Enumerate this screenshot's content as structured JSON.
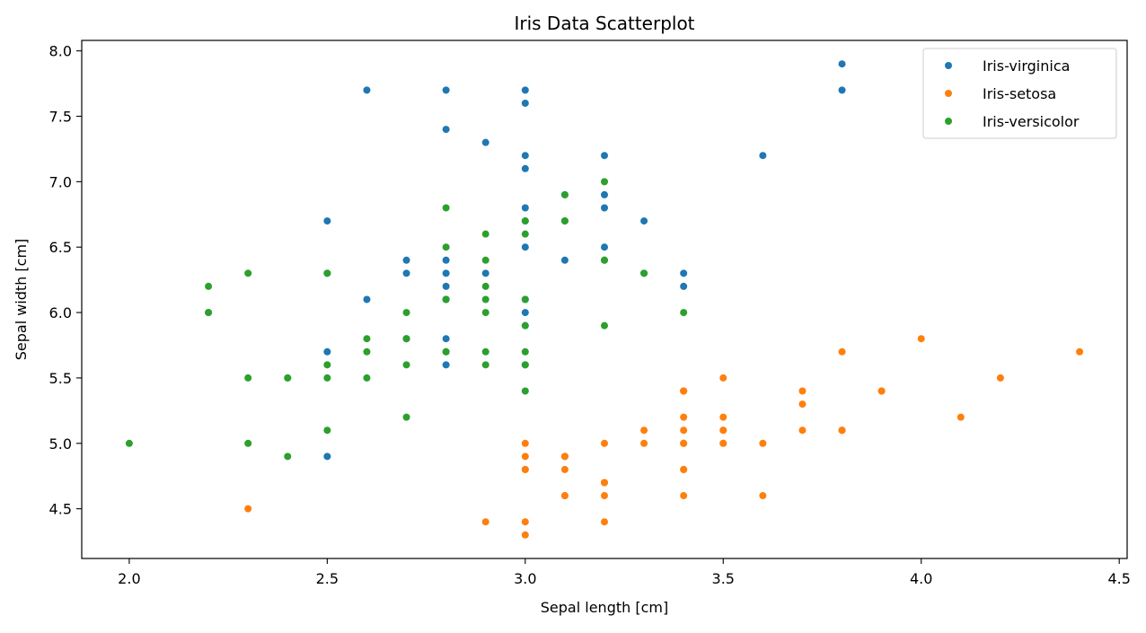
{
  "chart_data": {
    "type": "scatter",
    "title": "Iris Data Scatterplot",
    "xlabel": "Sepal length [cm]",
    "ylabel": "Sepal width [cm]",
    "xlim": [
      1.88,
      4.52
    ],
    "ylim": [
      4.12,
      8.08
    ],
    "xticks": [
      "2.0",
      "2.5",
      "3.0",
      "3.5",
      "4.0",
      "4.5"
    ],
    "yticks": [
      "4.5",
      "5.0",
      "5.5",
      "6.0",
      "6.5",
      "7.0",
      "7.5",
      "8.0"
    ],
    "grid": false,
    "legend_position": "top-right",
    "series": [
      {
        "name": "Iris-virginica",
        "color": "#1f77b4",
        "points": [
          [
            2.6,
            7.7
          ],
          [
            2.8,
            7.7
          ],
          [
            3.0,
            7.7
          ],
          [
            3.0,
            7.6
          ],
          [
            2.8,
            7.4
          ],
          [
            2.9,
            7.3
          ],
          [
            3.0,
            7.2
          ],
          [
            3.2,
            7.2
          ],
          [
            3.6,
            7.2
          ],
          [
            3.0,
            7.1
          ],
          [
            3.8,
            7.9
          ],
          [
            3.8,
            7.7
          ],
          [
            3.2,
            6.9
          ],
          [
            3.1,
            6.9
          ],
          [
            3.0,
            6.8
          ],
          [
            3.2,
            6.8
          ],
          [
            2.5,
            6.7
          ],
          [
            3.3,
            6.7
          ],
          [
            3.1,
            6.7
          ],
          [
            3.0,
            6.7
          ],
          [
            3.0,
            6.5
          ],
          [
            3.2,
            6.5
          ],
          [
            2.8,
            6.4
          ],
          [
            2.7,
            6.4
          ],
          [
            3.1,
            6.4
          ],
          [
            3.2,
            6.4
          ],
          [
            2.9,
            6.3
          ],
          [
            2.8,
            6.3
          ],
          [
            2.7,
            6.3
          ],
          [
            3.4,
            6.3
          ],
          [
            2.5,
            6.3
          ],
          [
            3.3,
            6.3
          ],
          [
            2.8,
            6.2
          ],
          [
            3.4,
            6.2
          ],
          [
            2.6,
            6.1
          ],
          [
            3.0,
            6.1
          ],
          [
            2.8,
            6.1
          ],
          [
            3.0,
            6.0
          ],
          [
            2.2,
            6.0
          ],
          [
            3.0,
            5.9
          ],
          [
            2.8,
            5.8
          ],
          [
            2.7,
            5.8
          ],
          [
            2.5,
            5.7
          ],
          [
            2.8,
            5.6
          ],
          [
            2.5,
            4.9
          ]
        ]
      },
      {
        "name": "Iris-setosa",
        "color": "#ff7f0e",
        "points": [
          [
            3.5,
            5.1
          ],
          [
            3.0,
            4.9
          ],
          [
            3.2,
            4.7
          ],
          [
            3.1,
            4.6
          ],
          [
            3.6,
            5.0
          ],
          [
            3.9,
            5.4
          ],
          [
            3.4,
            4.6
          ],
          [
            3.4,
            5.0
          ],
          [
            2.9,
            4.4
          ],
          [
            3.1,
            4.9
          ],
          [
            3.7,
            5.4
          ],
          [
            3.4,
            4.8
          ],
          [
            3.0,
            4.8
          ],
          [
            3.0,
            4.3
          ],
          [
            4.0,
            5.8
          ],
          [
            4.4,
            5.7
          ],
          [
            3.9,
            5.4
          ],
          [
            3.5,
            5.1
          ],
          [
            3.8,
            5.7
          ],
          [
            3.8,
            5.1
          ],
          [
            3.4,
            5.4
          ],
          [
            3.7,
            5.1
          ],
          [
            3.6,
            4.6
          ],
          [
            3.3,
            5.1
          ],
          [
            3.4,
            4.8
          ],
          [
            3.0,
            5.0
          ],
          [
            3.4,
            5.0
          ],
          [
            3.5,
            5.2
          ],
          [
            3.4,
            5.2
          ],
          [
            3.2,
            4.7
          ],
          [
            3.1,
            4.8
          ],
          [
            3.4,
            5.4
          ],
          [
            4.1,
            5.2
          ],
          [
            4.2,
            5.5
          ],
          [
            3.1,
            4.9
          ],
          [
            3.2,
            5.0
          ],
          [
            3.5,
            5.5
          ],
          [
            3.1,
            4.9
          ],
          [
            3.0,
            4.4
          ],
          [
            3.4,
            5.1
          ],
          [
            3.5,
            5.0
          ],
          [
            2.3,
            4.5
          ],
          [
            3.2,
            4.4
          ],
          [
            3.5,
            5.0
          ],
          [
            3.8,
            5.1
          ],
          [
            3.0,
            4.8
          ],
          [
            3.8,
            5.1
          ],
          [
            3.2,
            4.6
          ],
          [
            3.7,
            5.3
          ],
          [
            3.3,
            5.0
          ],
          [
            3.1,
            4.6
          ],
          [
            3.4,
            5.4
          ]
        ]
      },
      {
        "name": "Iris-versicolor",
        "color": "#2ca02c",
        "points": [
          [
            3.2,
            7.0
          ],
          [
            3.2,
            6.4
          ],
          [
            3.1,
            6.9
          ],
          [
            2.3,
            5.5
          ],
          [
            2.8,
            6.5
          ],
          [
            2.8,
            5.7
          ],
          [
            3.3,
            6.3
          ],
          [
            2.4,
            4.9
          ],
          [
            2.9,
            6.6
          ],
          [
            2.7,
            5.2
          ],
          [
            2.0,
            5.0
          ],
          [
            3.0,
            5.9
          ],
          [
            2.2,
            6.0
          ],
          [
            2.9,
            6.1
          ],
          [
            2.9,
            5.6
          ],
          [
            3.1,
            6.7
          ],
          [
            3.0,
            5.6
          ],
          [
            2.7,
            5.8
          ],
          [
            2.2,
            6.2
          ],
          [
            2.5,
            5.6
          ],
          [
            3.2,
            5.9
          ],
          [
            2.8,
            6.1
          ],
          [
            2.5,
            6.3
          ],
          [
            2.8,
            6.1
          ],
          [
            2.9,
            6.4
          ],
          [
            3.0,
            6.6
          ],
          [
            2.8,
            6.8
          ],
          [
            3.0,
            6.7
          ],
          [
            2.9,
            6.0
          ],
          [
            2.6,
            5.7
          ],
          [
            2.4,
            5.5
          ],
          [
            2.4,
            5.5
          ],
          [
            2.7,
            5.8
          ],
          [
            2.7,
            6.0
          ],
          [
            3.0,
            5.4
          ],
          [
            3.4,
            6.0
          ],
          [
            3.1,
            6.7
          ],
          [
            2.3,
            6.3
          ],
          [
            3.0,
            5.6
          ],
          [
            2.5,
            5.5
          ],
          [
            2.6,
            5.5
          ],
          [
            3.0,
            6.1
          ],
          [
            2.6,
            5.8
          ],
          [
            2.3,
            5.0
          ],
          [
            2.7,
            5.6
          ],
          [
            3.0,
            5.7
          ],
          [
            2.9,
            5.7
          ],
          [
            2.9,
            6.2
          ],
          [
            2.5,
            5.1
          ],
          [
            2.8,
            5.7
          ]
        ]
      }
    ]
  }
}
